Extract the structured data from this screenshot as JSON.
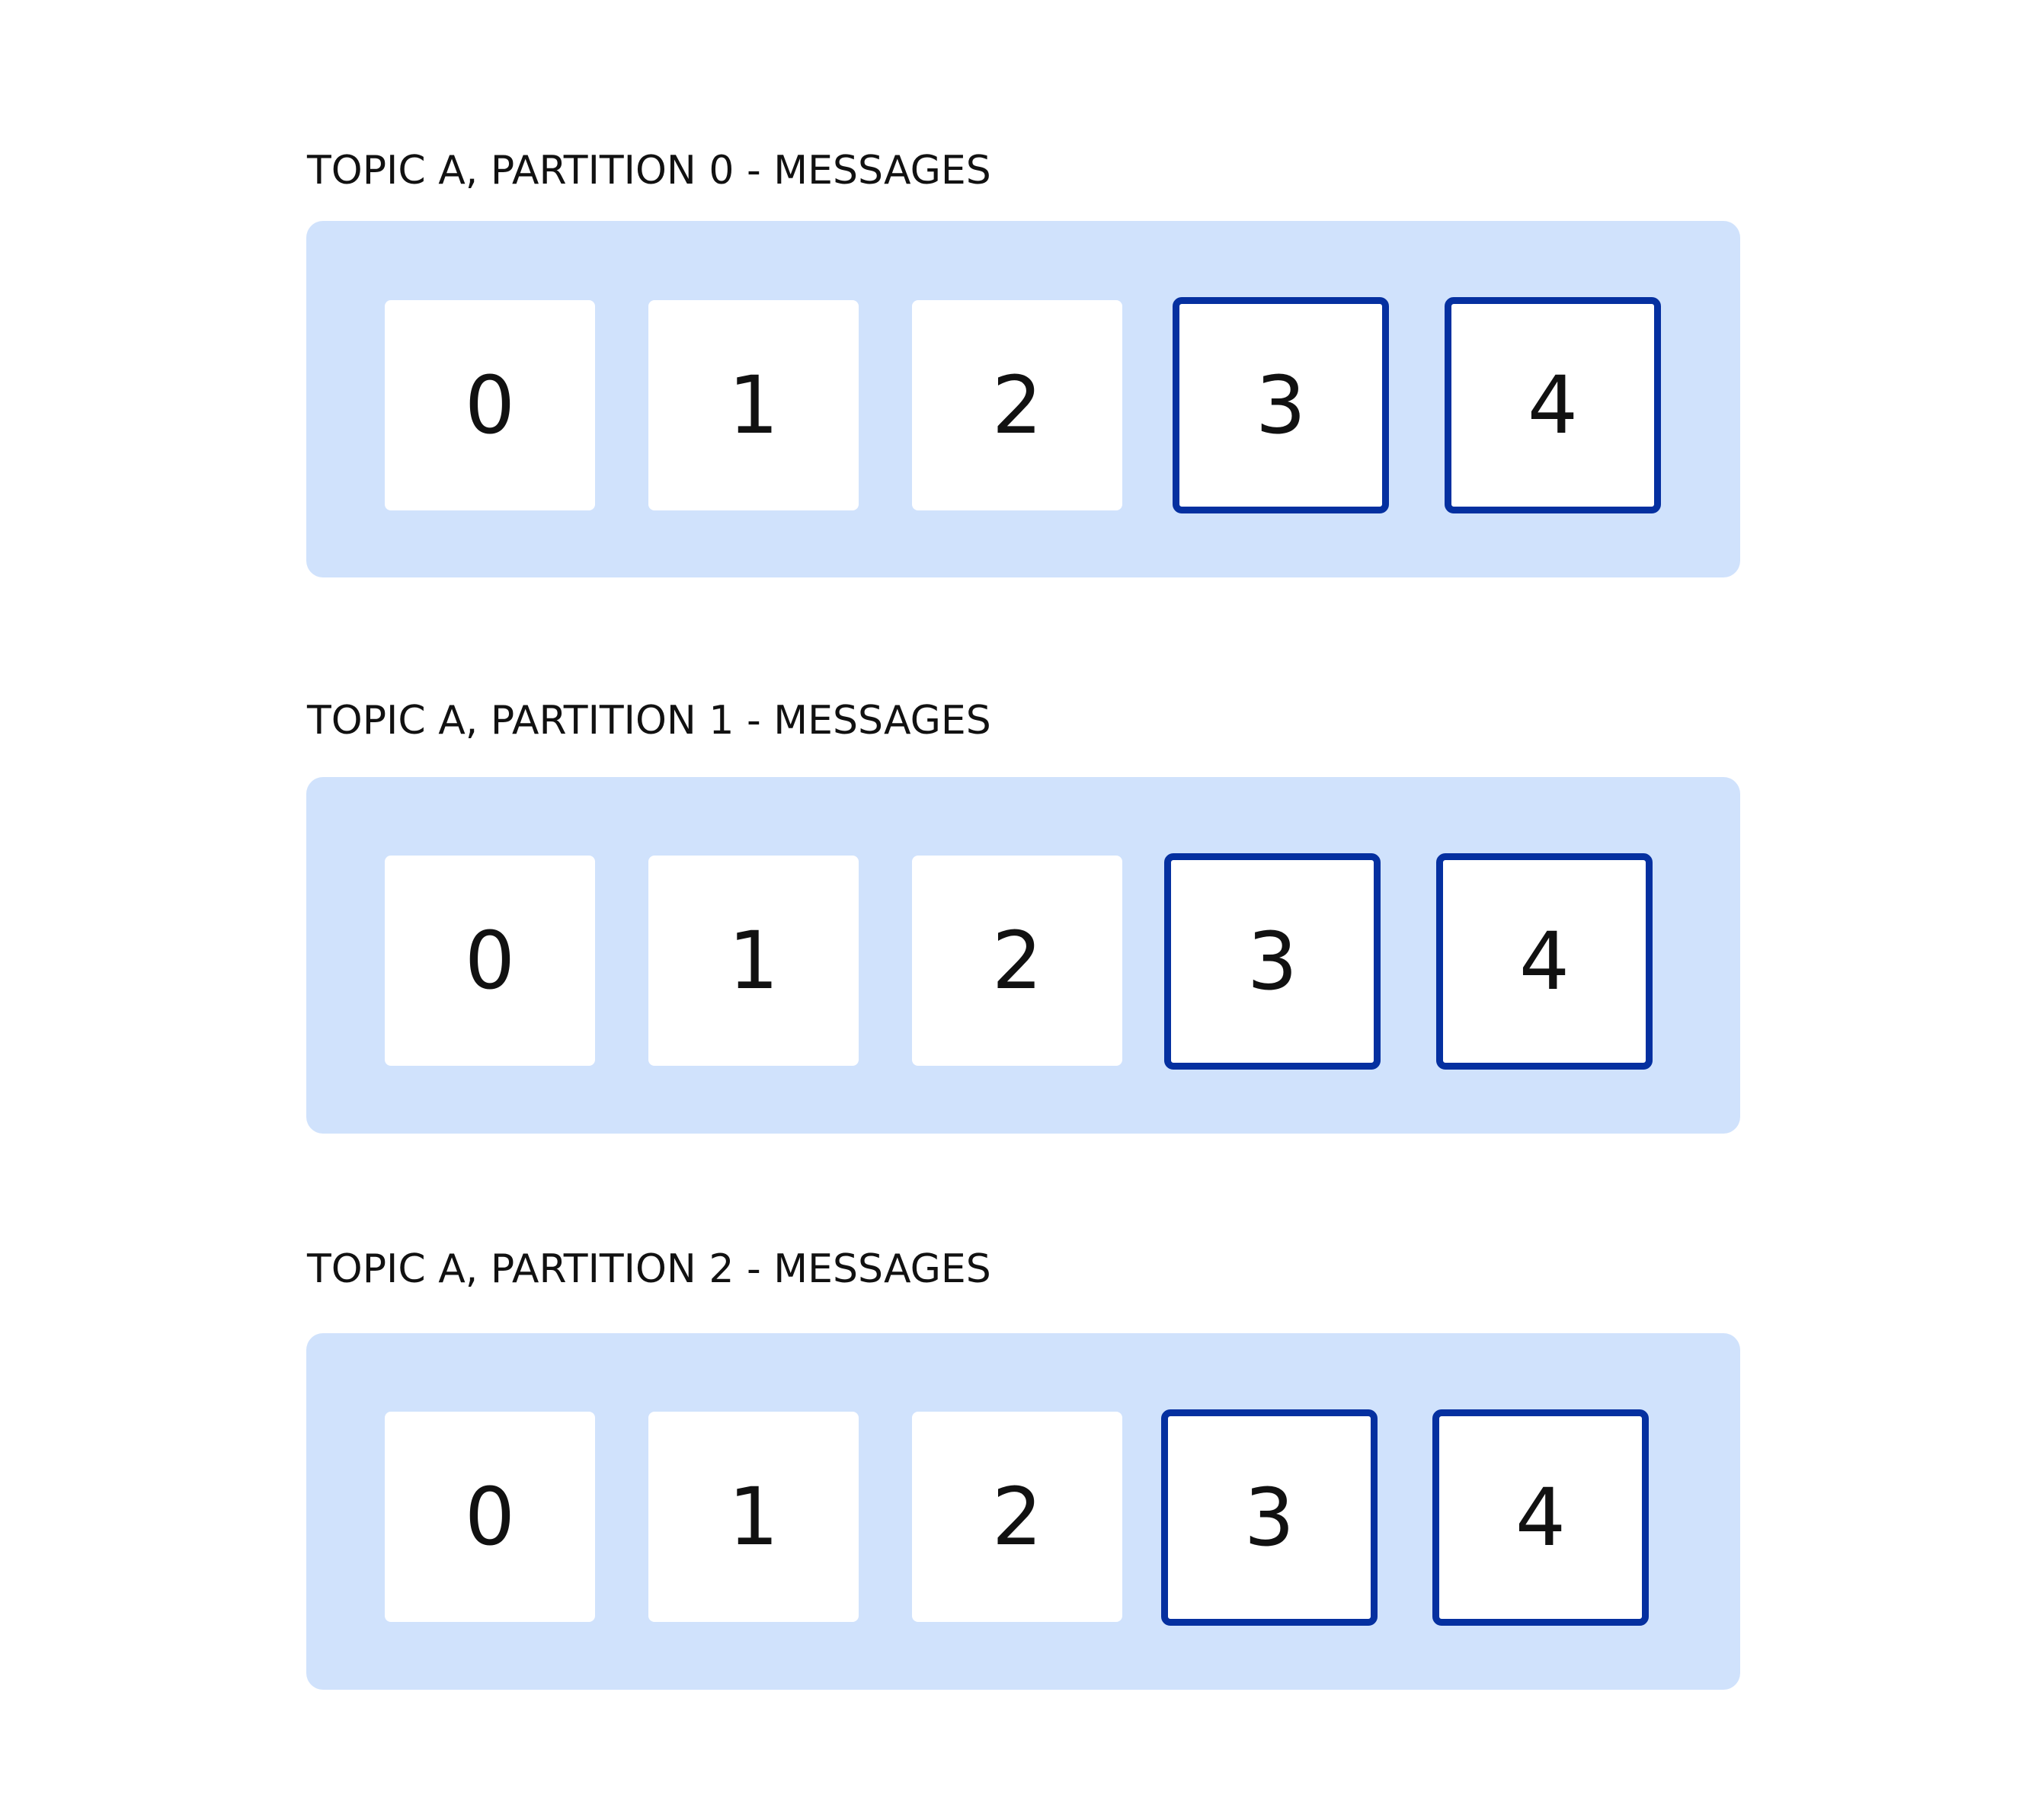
{
  "colors": {
    "panel_background": "#d0e2fc",
    "message_background": "#ffffff",
    "highlight_border": "#0530a0",
    "text": "#111111"
  },
  "partitions": [
    {
      "title": "TOPIC A, PARTITION 0 - MESSAGES",
      "messages": [
        {
          "offset": "0",
          "highlighted": false
        },
        {
          "offset": "1",
          "highlighted": false
        },
        {
          "offset": "2",
          "highlighted": false
        },
        {
          "offset": "3",
          "highlighted": true
        },
        {
          "offset": "4",
          "highlighted": true
        }
      ]
    },
    {
      "title": "TOPIC A, PARTITION 1 - MESSAGES",
      "messages": [
        {
          "offset": "0",
          "highlighted": false
        },
        {
          "offset": "1",
          "highlighted": false
        },
        {
          "offset": "2",
          "highlighted": false
        },
        {
          "offset": "3",
          "highlighted": true
        },
        {
          "offset": "4",
          "highlighted": true
        }
      ]
    },
    {
      "title": "TOPIC A, PARTITION 2 - MESSAGES",
      "messages": [
        {
          "offset": "0",
          "highlighted": false
        },
        {
          "offset": "1",
          "highlighted": false
        },
        {
          "offset": "2",
          "highlighted": false
        },
        {
          "offset": "3",
          "highlighted": true
        },
        {
          "offset": "4",
          "highlighted": true
        }
      ]
    }
  ]
}
